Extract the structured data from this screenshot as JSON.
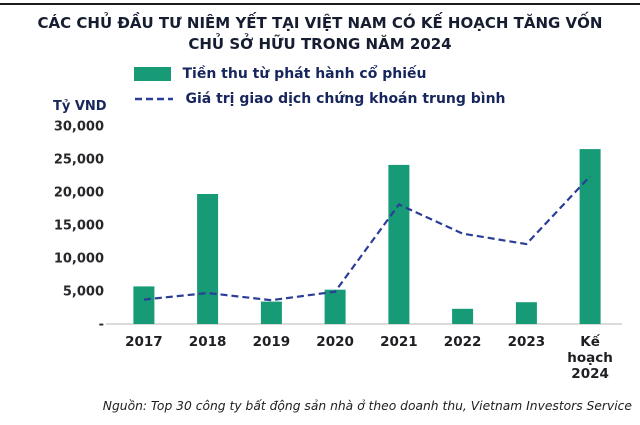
{
  "title": "CÁC CHỦ ĐẦU TƯ NIÊM YẾT TẠI VIỆT NAM CÓ KẾ HOẠCH TĂNG VỐN CHỦ SỞ HỮU TRONG NĂM 2024",
  "source": "Nguồn: Top 30 công ty bất động sản nhà ở theo doanh thu, Vietnam Investors Service",
  "chart_data": {
    "type": "bar",
    "unit_label": "Tỷ VND",
    "categories": [
      "2017",
      "2018",
      "2019",
      "2020",
      "2021",
      "2022",
      "2023",
      "Kế hoạch 2024"
    ],
    "series": [
      {
        "name": "Tiền thu từ phát hành cổ phiếu",
        "type": "bar",
        "color": "#169b76",
        "values": [
          5700,
          19700,
          3400,
          5200,
          24100,
          2300,
          3300,
          26500
        ]
      },
      {
        "name": "Giá trị giao dịch chứng khoán trung bình",
        "type": "line",
        "dashed": true,
        "color": "#2b3d96",
        "values": [
          3700,
          4700,
          3600,
          4900,
          18100,
          13700,
          12100,
          22400
        ]
      }
    ],
    "ylim": [
      0,
      30000
    ],
    "yticks": [
      {
        "value": 30000,
        "label": "30,000"
      },
      {
        "value": 25000,
        "label": "25,000"
      },
      {
        "value": 20000,
        "label": "20,000"
      },
      {
        "value": 15000,
        "label": "15,000"
      },
      {
        "value": 10000,
        "label": "10,000"
      },
      {
        "value": 5000,
        "label": "5,000"
      },
      {
        "value": 0,
        "label": "-"
      }
    ],
    "grid": false,
    "legend_position": "top"
  }
}
